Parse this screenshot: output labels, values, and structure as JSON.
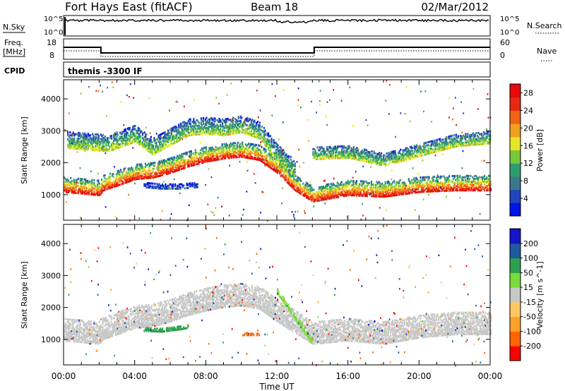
{
  "header": {
    "site": "Fort Hays East (fitACF)",
    "beam": "Beam 18",
    "date": "02/Mar/2012"
  },
  "nsky_panel": {
    "left_label": "N.Sky",
    "right_label": "N.Search",
    "left_ticks": [
      "10^5",
      "10^0"
    ],
    "right_ticks": [
      "10^5",
      "10^0"
    ]
  },
  "freq_panel": {
    "left_label": "Freq.",
    "left_unit": "[MHz]",
    "left_ticks": [
      "18",
      "8"
    ],
    "right_label": "Nave",
    "right_ticks": [
      "60",
      "0"
    ],
    "freq_steps": [
      {
        "t": 0.0,
        "mhz": 14.0
      },
      {
        "t": 2.1,
        "mhz": 10.8
      },
      {
        "t": 14.1,
        "mhz": 14.0
      },
      {
        "t": 24.0,
        "mhz": 14.0
      }
    ]
  },
  "cpid_panel": {
    "label": "CPID",
    "mode": "themis -3300 IF"
  },
  "colors": {
    "power_scale": [
      "#0014e6",
      "#1e46be",
      "#3c788c",
      "#2d9e6e",
      "#78c83c",
      "#e6e628",
      "#f0a020",
      "#f06414",
      "#e62814",
      "#e60a0a"
    ],
    "velocity_scale": [
      "#ff0000",
      "#ff6400",
      "#ffa028",
      "#ffc864",
      "#c8c8c8",
      "#c8c8c8",
      "#78dc3c",
      "#2da050",
      "#1e5aa0",
      "#1414c8"
    ]
  },
  "chart_data": [
    {
      "type": "heatmap",
      "title": "",
      "ylabel": "Slant Range [km]",
      "xlabel": "",
      "x_units": "hours UT",
      "xlim": [
        0,
        24
      ],
      "ylim": [
        200,
        4600
      ],
      "y_ticks": [
        "1000",
        "2000",
        "3000",
        "4000"
      ],
      "colorbar": {
        "label": "Power [dB]",
        "ticks": [
          "4",
          "8",
          "12",
          "16",
          "20",
          "24",
          "28"
        ],
        "range": [
          0,
          30
        ]
      },
      "bands": [
        {
          "name": "dense ground/ionospheric scatter",
          "points": [
            [
              0.0,
              1300
            ],
            [
              2.0,
              1200
            ],
            [
              2.2,
              1350
            ],
            [
              3.0,
              1500
            ],
            [
              4.0,
              1700
            ],
            [
              5.0,
              1750
            ],
            [
              6.0,
              1900
            ],
            [
              7.0,
              2100
            ],
            [
              8.0,
              2250
            ],
            [
              9.0,
              2350
            ],
            [
              10.0,
              2400
            ],
            [
              11.0,
              2300
            ],
            [
              12.0,
              1900
            ],
            [
              13.0,
              1350
            ],
            [
              14.0,
              1000
            ],
            [
              16.0,
              1200
            ],
            [
              18.0,
              1150
            ],
            [
              20.0,
              1300
            ],
            [
              22.0,
              1350
            ],
            [
              24.0,
              1350
            ]
          ],
          "width_km": 450,
          "peak_power_db": 28
        },
        {
          "name": "upper scatter layer",
          "points": [
            [
              0.2,
              2700
            ],
            [
              2.5,
              2600
            ],
            [
              4.0,
              2900
            ],
            [
              5.0,
              2500
            ],
            [
              6.0,
              2800
            ],
            [
              7.0,
              3100
            ],
            [
              8.0,
              3150
            ],
            [
              9.0,
              3100
            ],
            [
              10.0,
              3200
            ],
            [
              11.0,
              3000
            ],
            [
              12.0,
              2300
            ],
            [
              13.0,
              1800
            ]
          ],
          "width_km": 500,
          "peak_power_db": 16
        },
        {
          "name": "low-power patch",
          "points": [
            [
              4.5,
              1300
            ],
            [
              5.5,
              1250
            ],
            [
              6.5,
              1250
            ],
            [
              7.5,
              1300
            ]
          ],
          "width_km": 150,
          "peak_power_db": 6
        },
        {
          "name": "late upper layer",
          "points": [
            [
              14.0,
              2300
            ],
            [
              16.0,
              2350
            ],
            [
              18.0,
              2100
            ],
            [
              20.0,
              2400
            ],
            [
              22.0,
              2700
            ],
            [
              24.0,
              2800
            ]
          ],
          "width_km": 400,
          "peak_power_db": 16
        }
      ]
    },
    {
      "type": "heatmap",
      "title": "",
      "ylabel": "Slant Range [km]",
      "xlabel": "Time UT",
      "x_units": "hours UT",
      "xlim": [
        0,
        24
      ],
      "ylim": [
        200,
        4600
      ],
      "y_ticks": [
        "1000",
        "2000",
        "3000",
        "4000"
      ],
      "x_ticks": [
        "00:00",
        "04:00",
        "08:00",
        "12:00",
        "16:00",
        "20:00",
        "00:00"
      ],
      "colorbar": {
        "label": "Velocity [m s^-1]",
        "ticks": [
          "200",
          "100",
          "50",
          "15",
          "-15",
          "-50",
          "-100",
          "-200"
        ],
        "range": [
          -250,
          250
        ]
      },
      "bands": [
        {
          "name": "ground scatter (low velocity)",
          "points": [
            [
              0.0,
              1300
            ],
            [
              2.0,
              1200
            ],
            [
              2.2,
              1350
            ],
            [
              3.0,
              1500
            ],
            [
              4.0,
              1700
            ],
            [
              5.0,
              1750
            ],
            [
              6.0,
              1900
            ],
            [
              7.0,
              2100
            ],
            [
              8.0,
              2250
            ],
            [
              9.0,
              2350
            ],
            [
              10.0,
              2400
            ],
            [
              11.0,
              2300
            ],
            [
              12.0,
              1900
            ],
            [
              14.0,
              1200
            ],
            [
              16.0,
              1300
            ],
            [
              18.0,
              1200
            ],
            [
              20.0,
              1400
            ],
            [
              22.0,
              1500
            ],
            [
              24.0,
              1500
            ]
          ],
          "width_km": 700,
          "velocity": 0
        },
        {
          "name": "positive velocity streak",
          "points": [
            [
              12.0,
              2500
            ],
            [
              13.0,
              1700
            ],
            [
              14.0,
              900
            ]
          ],
          "width_km": 150,
          "velocity": 40
        },
        {
          "name": "green patch",
          "points": [
            [
              4.5,
              1300
            ],
            [
              5.5,
              1280
            ],
            [
              6.5,
              1350
            ],
            [
              7.0,
              1400
            ]
          ],
          "width_km": 100,
          "velocity": 60
        },
        {
          "name": "negative patch",
          "points": [
            [
              10.0,
              1150
            ],
            [
              11.0,
              1150
            ]
          ],
          "width_km": 60,
          "velocity": -180
        }
      ]
    }
  ]
}
